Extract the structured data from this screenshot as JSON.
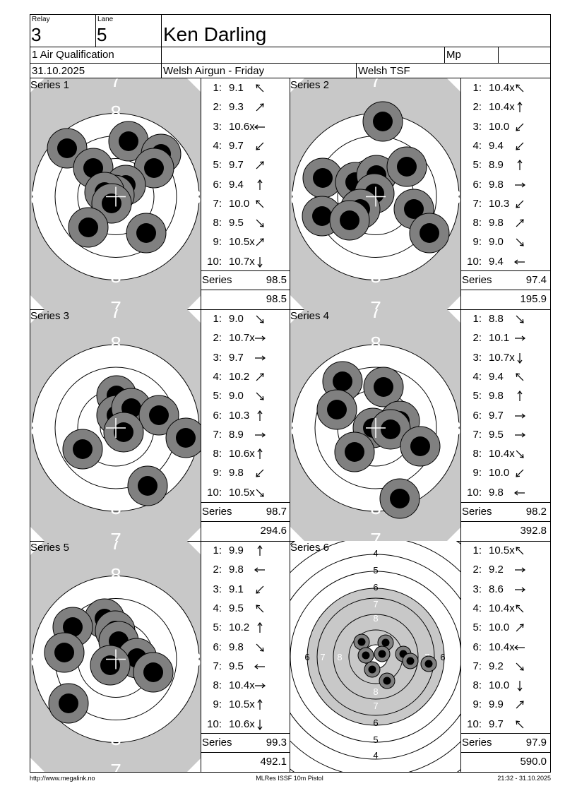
{
  "header": {
    "relay_label": "Relay",
    "relay": "3",
    "lane_label": "Lane",
    "lane": "5",
    "name": "Ken Darling",
    "event": "1 Air Qualification",
    "mp_label": "Mp",
    "date": "31.10.2025",
    "competition": "Welsh Airgun - Friday",
    "organizer": "Welsh TSF"
  },
  "series_label": "Series",
  "series": [
    {
      "title": "Series 1",
      "total": "98.5",
      "cumulative": "98.5",
      "shots": [
        {
          "n": "1:",
          "v": "9.1",
          "dir": "nw"
        },
        {
          "n": "2:",
          "v": "9.3",
          "dir": "ne"
        },
        {
          "n": "3:",
          "v": "10.6x",
          "dir": "w"
        },
        {
          "n": "4:",
          "v": "9.7",
          "dir": "sw"
        },
        {
          "n": "5:",
          "v": "9.7",
          "dir": "ne"
        },
        {
          "n": "6:",
          "v": "9.4",
          "dir": "n"
        },
        {
          "n": "7:",
          "v": "10.0",
          "dir": "nw"
        },
        {
          "n": "8:",
          "v": "9.5",
          "dir": "se"
        },
        {
          "n": "9:",
          "v": "10.5x",
          "dir": "ne"
        },
        {
          "n": "10:",
          "v": "10.7x",
          "dir": "s"
        }
      ]
    },
    {
      "title": "Series 2",
      "total": "97.4",
      "cumulative": "195.9",
      "shots": [
        {
          "n": "1:",
          "v": "10.4x",
          "dir": "nw"
        },
        {
          "n": "2:",
          "v": "10.4x",
          "dir": "n"
        },
        {
          "n": "3:",
          "v": "10.0",
          "dir": "sw"
        },
        {
          "n": "4:",
          "v": "9.4",
          "dir": "sw"
        },
        {
          "n": "5:",
          "v": "8.9",
          "dir": "n"
        },
        {
          "n": "6:",
          "v": "9.8",
          "dir": "e"
        },
        {
          "n": "7:",
          "v": "10.3",
          "dir": "sw"
        },
        {
          "n": "8:",
          "v": "9.8",
          "dir": "ne"
        },
        {
          "n": "9:",
          "v": "9.0",
          "dir": "se"
        },
        {
          "n": "10:",
          "v": "9.4",
          "dir": "w"
        }
      ]
    },
    {
      "title": "Series 3",
      "total": "98.7",
      "cumulative": "294.6",
      "shots": [
        {
          "n": "1:",
          "v": "9.0",
          "dir": "se"
        },
        {
          "n": "2:",
          "v": "10.7x",
          "dir": "e"
        },
        {
          "n": "3:",
          "v": "9.7",
          "dir": "e"
        },
        {
          "n": "4:",
          "v": "10.2",
          "dir": "ne"
        },
        {
          "n": "5:",
          "v": "9.0",
          "dir": "se"
        },
        {
          "n": "6:",
          "v": "10.3",
          "dir": "n"
        },
        {
          "n": "7:",
          "v": "8.9",
          "dir": "e"
        },
        {
          "n": "8:",
          "v": "10.6x",
          "dir": "n"
        },
        {
          "n": "9:",
          "v": "9.8",
          "dir": "sw"
        },
        {
          "n": "10:",
          "v": "10.5x",
          "dir": "se"
        }
      ]
    },
    {
      "title": "Series 4",
      "total": "98.2",
      "cumulative": "392.8",
      "shots": [
        {
          "n": "1:",
          "v": "8.8",
          "dir": "se"
        },
        {
          "n": "2:",
          "v": "10.1",
          "dir": "e"
        },
        {
          "n": "3:",
          "v": "10.7x",
          "dir": "s"
        },
        {
          "n": "4:",
          "v": "9.4",
          "dir": "nw"
        },
        {
          "n": "5:",
          "v": "9.8",
          "dir": "n"
        },
        {
          "n": "6:",
          "v": "9.7",
          "dir": "e"
        },
        {
          "n": "7:",
          "v": "9.5",
          "dir": "e"
        },
        {
          "n": "8:",
          "v": "10.4x",
          "dir": "se"
        },
        {
          "n": "9:",
          "v": "10.0",
          "dir": "sw"
        },
        {
          "n": "10:",
          "v": "9.8",
          "dir": "w"
        }
      ]
    },
    {
      "title": "Series 5",
      "total": "99.3",
      "cumulative": "492.1",
      "shots": [
        {
          "n": "1:",
          "v": "9.9",
          "dir": "n"
        },
        {
          "n": "2:",
          "v": "9.8",
          "dir": "w"
        },
        {
          "n": "3:",
          "v": "9.1",
          "dir": "sw"
        },
        {
          "n": "4:",
          "v": "9.5",
          "dir": "nw"
        },
        {
          "n": "5:",
          "v": "10.2",
          "dir": "n"
        },
        {
          "n": "6:",
          "v": "9.8",
          "dir": "se"
        },
        {
          "n": "7:",
          "v": "9.5",
          "dir": "w"
        },
        {
          "n": "8:",
          "v": "10.4x",
          "dir": "e"
        },
        {
          "n": "9:",
          "v": "10.5x",
          "dir": "n"
        },
        {
          "n": "10:",
          "v": "10.6x",
          "dir": "s"
        }
      ]
    },
    {
      "title": "Series 6",
      "total": "97.9",
      "cumulative": "590.0",
      "shots": [
        {
          "n": "1:",
          "v": "10.5x",
          "dir": "nw"
        },
        {
          "n": "2:",
          "v": "9.2",
          "dir": "e"
        },
        {
          "n": "3:",
          "v": "8.6",
          "dir": "e"
        },
        {
          "n": "4:",
          "v": "10.4x",
          "dir": "nw"
        },
        {
          "n": "5:",
          "v": "10.0",
          "dir": "ne"
        },
        {
          "n": "6:",
          "v": "10.4x",
          "dir": "w"
        },
        {
          "n": "7:",
          "v": "9.2",
          "dir": "se"
        },
        {
          "n": "8:",
          "v": "10.0",
          "dir": "s"
        },
        {
          "n": "9:",
          "v": "9.9",
          "dir": "ne"
        },
        {
          "n": "10:",
          "v": "9.7",
          "dir": "nw"
        }
      ]
    }
  ],
  "target_ring_labels": {
    "zoom_top": "7",
    "zoom_mid": "8",
    "full": [
      "4",
      "5",
      "6",
      "7",
      "8"
    ]
  },
  "footer": {
    "url": "http://www.megalink.no",
    "system": "MLRes ISSF 10m Pistol",
    "timestamp": "21:32 - 31.10.2025"
  },
  "colors": {
    "target_gray": "#c8c8c8",
    "hole_ring": "#808080",
    "hole_center": "#000000"
  }
}
